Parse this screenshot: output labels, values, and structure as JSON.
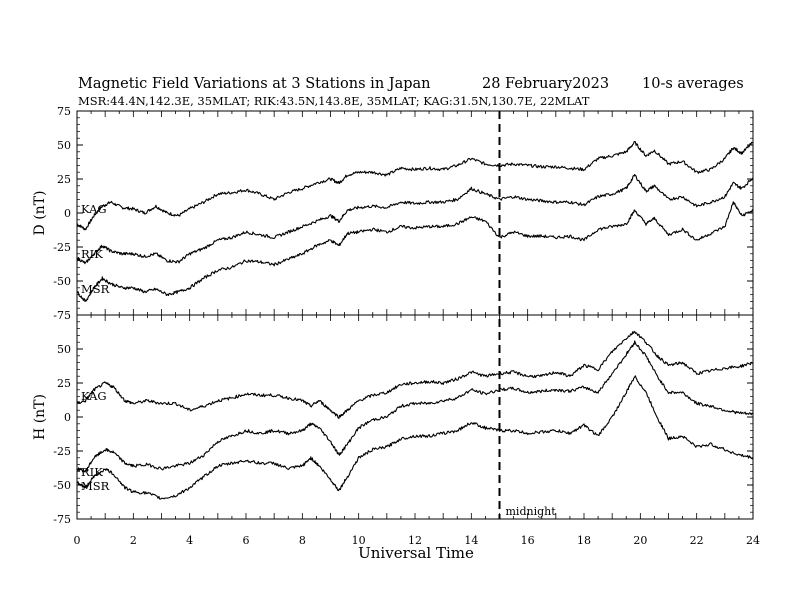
{
  "chart_data": {
    "type": "line",
    "title_left": "Magnetic Field Variations at 3 Stations in Japan",
    "title_date": "28 February2023",
    "title_right": "10-s averages",
    "subtitle": "MSR:44.4N,142.3E, 35MLAT;  RIK:43.5N,143.8E, 35MLAT;  KAG:31.5N,130.7E, 22MLAT",
    "xlabel": "Universal Time",
    "xlim": [
      0,
      24
    ],
    "xticks": [
      0,
      2,
      4,
      6,
      8,
      10,
      12,
      14,
      16,
      18,
      20,
      22,
      24
    ],
    "annotation": {
      "x": 15,
      "label": "midnight"
    },
    "panels": [
      {
        "ylabel": "D (nT)",
        "ylim": [
          -75,
          75
        ],
        "yticks": [
          -75,
          -50,
          -25,
          0,
          25,
          50,
          75
        ],
        "series": [
          {
            "name": "KAG",
            "x": [
              0,
              0.3,
              0.6,
              0.9,
              1.2,
              1.6,
              2,
              2.4,
              2.8,
              3.2,
              3.6,
              4,
              4.5,
              5,
              5.5,
              6,
              6.5,
              7,
              7.5,
              8,
              8.5,
              9,
              9.3,
              9.6,
              10,
              10.5,
              11,
              11.5,
              12,
              12.5,
              13,
              13.5,
              14,
              14.5,
              15,
              15.5,
              16,
              16.5,
              17,
              17.5,
              18,
              18.5,
              19,
              19.5,
              19.8,
              20.2,
              20.5,
              21,
              21.5,
              22,
              22.5,
              23,
              23.3,
              23.6,
              24
            ],
            "y": [
              -8,
              -12,
              -2,
              5,
              8,
              4,
              3,
              0,
              5,
              0,
              -2,
              3,
              8,
              14,
              15,
              17,
              14,
              10,
              15,
              18,
              22,
              25,
              22,
              28,
              30,
              30,
              28,
              33,
              32,
              33,
              32,
              35,
              40,
              36,
              35,
              36,
              35,
              34,
              34,
              33,
              32,
              40,
              42,
              45,
              52,
              42,
              46,
              36,
              38,
              30,
              32,
              40,
              48,
              44,
              52
            ]
          },
          {
            "name": "RIK",
            "x": [
              0,
              0.3,
              0.6,
              0.9,
              1.2,
              1.6,
              2,
              2.4,
              2.8,
              3.2,
              3.6,
              4,
              4.5,
              5,
              5.5,
              6,
              6.5,
              7,
              7.5,
              8,
              8.5,
              9,
              9.3,
              9.6,
              10,
              10.5,
              11,
              11.5,
              12,
              12.5,
              13,
              13.5,
              14,
              14.5,
              15,
              15.5,
              16,
              16.5,
              17,
              17.5,
              18,
              18.5,
              19,
              19.5,
              19.8,
              20.2,
              20.5,
              21,
              21.5,
              22,
              22.5,
              23,
              23.3,
              23.6,
              24
            ],
            "y": [
              -33,
              -37,
              -30,
              -24,
              -28,
              -30,
              -30,
              -32,
              -30,
              -35,
              -36,
              -30,
              -26,
              -20,
              -18,
              -14,
              -16,
              -18,
              -14,
              -10,
              -6,
              -2,
              -6,
              2,
              4,
              5,
              4,
              8,
              7,
              8,
              8,
              10,
              18,
              14,
              10,
              12,
              10,
              9,
              8,
              8,
              6,
              12,
              14,
              18,
              28,
              16,
              20,
              10,
              12,
              5,
              8,
              12,
              22,
              18,
              26
            ]
          },
          {
            "name": "MSR",
            "x": [
              0,
              0.3,
              0.6,
              0.9,
              1.2,
              1.6,
              2,
              2.4,
              2.8,
              3.2,
              3.6,
              4,
              4.5,
              5,
              5.5,
              6,
              6.5,
              7,
              7.5,
              8,
              8.5,
              9,
              9.3,
              9.6,
              10,
              10.5,
              11,
              11.5,
              12,
              12.5,
              13,
              13.5,
              14,
              14.5,
              15,
              15.5,
              16,
              16.5,
              17,
              17.5,
              18,
              18.5,
              19,
              19.5,
              19.8,
              20.2,
              20.5,
              21,
              21.5,
              22,
              22.5,
              23,
              23.3,
              23.6,
              24
            ],
            "y": [
              -58,
              -65,
              -55,
              -48,
              -52,
              -55,
              -55,
              -58,
              -56,
              -60,
              -58,
              -55,
              -48,
              -42,
              -40,
              -35,
              -36,
              -38,
              -34,
              -30,
              -24,
              -20,
              -24,
              -15,
              -14,
              -12,
              -14,
              -10,
              -11,
              -10,
              -10,
              -8,
              -3,
              -6,
              -18,
              -14,
              -17,
              -17,
              -18,
              -17,
              -20,
              -12,
              -10,
              -8,
              2,
              -8,
              -4,
              -16,
              -12,
              -20,
              -15,
              -10,
              8,
              -2,
              2
            ]
          }
        ]
      },
      {
        "ylabel": "H (nT)",
        "ylim": [
          -75,
          75
        ],
        "yticks": [
          -75,
          -50,
          -25,
          0,
          25,
          50,
          75
        ],
        "series": [
          {
            "name": "KAG",
            "x": [
              0,
              0.3,
              0.6,
              1,
              1.3,
              1.7,
              2,
              2.5,
              3,
              3.5,
              4,
              4.5,
              5,
              5.5,
              6,
              6.5,
              7,
              7.5,
              8,
              8.3,
              8.6,
              9,
              9.3,
              9.6,
              10,
              10.5,
              11,
              11.5,
              12,
              12.5,
              13,
              13.5,
              14,
              14.5,
              15,
              15.5,
              16,
              16.5,
              17,
              17.5,
              18,
              18.5,
              19,
              19.5,
              19.8,
              20.2,
              20.6,
              21,
              21.5,
              22,
              22.5,
              23,
              23.5,
              24
            ],
            "y": [
              10,
              12,
              20,
              25,
              22,
              12,
              10,
              12,
              10,
              10,
              5,
              8,
              12,
              14,
              17,
              16,
              16,
              14,
              12,
              8,
              12,
              5,
              0,
              5,
              12,
              16,
              18,
              24,
              25,
              26,
              25,
              28,
              33,
              30,
              32,
              33,
              30,
              30,
              33,
              30,
              38,
              35,
              48,
              58,
              63,
              55,
              45,
              38,
              40,
              32,
              34,
              36,
              37,
              40
            ]
          },
          {
            "name": "RIK",
            "x": [
              0,
              0.3,
              0.6,
              1,
              1.3,
              1.7,
              2,
              2.5,
              3,
              3.5,
              4,
              4.5,
              5,
              5.5,
              6,
              6.5,
              7,
              7.5,
              8,
              8.3,
              8.6,
              9,
              9.3,
              9.6,
              10,
              10.5,
              11,
              11.5,
              12,
              12.5,
              13,
              13.5,
              14,
              14.5,
              15,
              15.5,
              16,
              16.5,
              17,
              17.5,
              18,
              18.5,
              19,
              19.5,
              19.8,
              20.2,
              20.6,
              21,
              21.5,
              22,
              22.5,
              23,
              23.5,
              24
            ],
            "y": [
              -38,
              -40,
              -30,
              -24,
              -26,
              -34,
              -36,
              -35,
              -38,
              -36,
              -34,
              -28,
              -18,
              -14,
              -10,
              -12,
              -10,
              -12,
              -10,
              -5,
              -8,
              -18,
              -28,
              -20,
              -8,
              -2,
              0,
              8,
              10,
              10,
              12,
              14,
              20,
              17,
              20,
              21,
              18,
              19,
              20,
              19,
              22,
              18,
              32,
              46,
              55,
              45,
              30,
              18,
              18,
              10,
              8,
              5,
              3,
              2
            ]
          },
          {
            "name": "MSR",
            "x": [
              0,
              0.3,
              0.6,
              1,
              1.3,
              1.7,
              2,
              2.5,
              3,
              3.5,
              4,
              4.5,
              5,
              5.5,
              6,
              6.5,
              7,
              7.5,
              8,
              8.3,
              8.6,
              9,
              9.3,
              9.6,
              10,
              10.5,
              11,
              11.5,
              12,
              12.5,
              13,
              13.5,
              14,
              14.5,
              15,
              15.5,
              16,
              16.5,
              17,
              17.5,
              18,
              18.5,
              19,
              19.5,
              19.8,
              20.2,
              20.6,
              21,
              21.5,
              22,
              22.5,
              23,
              23.5,
              24
            ],
            "y": [
              -48,
              -52,
              -44,
              -38,
              -42,
              -52,
              -55,
              -56,
              -60,
              -58,
              -52,
              -44,
              -36,
              -34,
              -32,
              -34,
              -34,
              -38,
              -36,
              -30,
              -36,
              -46,
              -54,
              -44,
              -30,
              -24,
              -22,
              -16,
              -14,
              -14,
              -12,
              -10,
              -4,
              -8,
              -10,
              -10,
              -12,
              -11,
              -10,
              -12,
              -6,
              -14,
              0,
              18,
              30,
              18,
              0,
              -16,
              -14,
              -22,
              -20,
              -24,
              -28,
              -30
            ]
          }
        ]
      }
    ]
  }
}
